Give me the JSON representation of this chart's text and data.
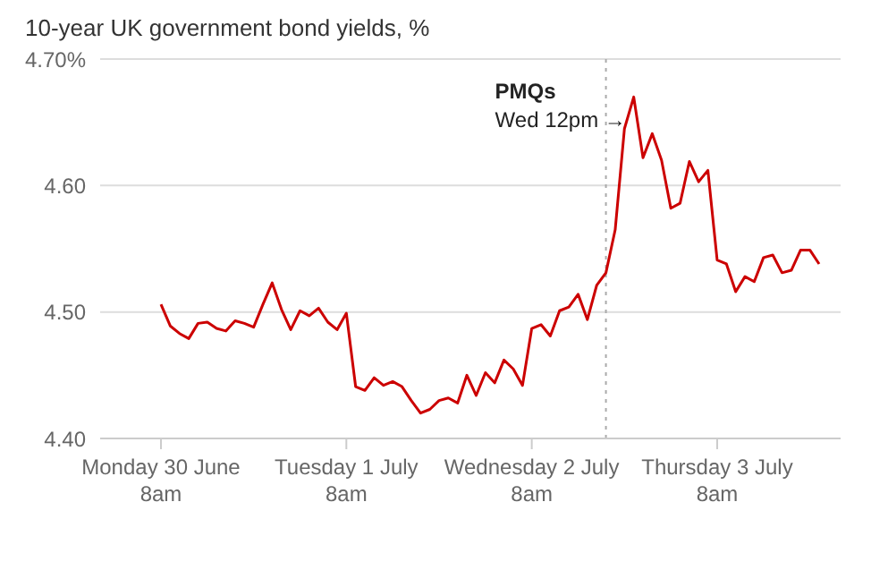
{
  "chart_data": {
    "type": "line",
    "title": "10-year UK government bond yields, %",
    "categories": [
      "Monday 30 June\n8am",
      null,
      null,
      null,
      null,
      null,
      null,
      null,
      null,
      null,
      null,
      null,
      null,
      null,
      null,
      null,
      null,
      null,
      null,
      null,
      "Tuesday 1 July\n8am",
      null,
      null,
      null,
      null,
      null,
      null,
      null,
      null,
      null,
      null,
      null,
      null,
      null,
      null,
      null,
      null,
      null,
      null,
      null,
      "Wednesday 2 July\n8am",
      null,
      null,
      null,
      null,
      null,
      null,
      null,
      null,
      null,
      null,
      null,
      null,
      null,
      null,
      null,
      null,
      null,
      null,
      null,
      "Thursday 3 July\n8am",
      null,
      null,
      null,
      null,
      null,
      null,
      null,
      null,
      null,
      null,
      null
    ],
    "series": [
      {
        "color": "#cc0000",
        "values": [
          4.506,
          4.489,
          4.483,
          4.479,
          4.491,
          4.492,
          4.487,
          4.485,
          4.493,
          4.491,
          4.488,
          4.506,
          4.523,
          4.502,
          4.486,
          4.501,
          4.497,
          4.503,
          4.492,
          4.486,
          4.499,
          4.441,
          4.438,
          4.448,
          4.442,
          4.445,
          4.441,
          4.43,
          4.42,
          4.423,
          4.43,
          4.432,
          4.428,
          4.45,
          4.434,
          4.452,
          4.444,
          4.462,
          4.455,
          4.442,
          4.487,
          4.49,
          4.481,
          4.501,
          4.504,
          4.514,
          4.494,
          4.521,
          4.531,
          4.565,
          4.645,
          4.67,
          4.622,
          4.641,
          4.62,
          4.582,
          4.586,
          4.619,
          4.603,
          4.612,
          4.541,
          4.538,
          4.516,
          4.528,
          4.524,
          4.543,
          4.545,
          4.531,
          4.533,
          4.549,
          4.549,
          4.538
        ]
      }
    ],
    "ylim": [
      4.4,
      4.7
    ],
    "yticks": [
      {
        "value": 4.4,
        "label": "4.40"
      },
      {
        "value": 4.5,
        "label": "4.50"
      },
      {
        "value": 4.6,
        "label": "4.60"
      },
      {
        "value": 4.7,
        "label": "4.70%"
      }
    ],
    "grid": "y",
    "annotations": [
      "PMQs",
      "Wed 12pm →"
    ]
  }
}
